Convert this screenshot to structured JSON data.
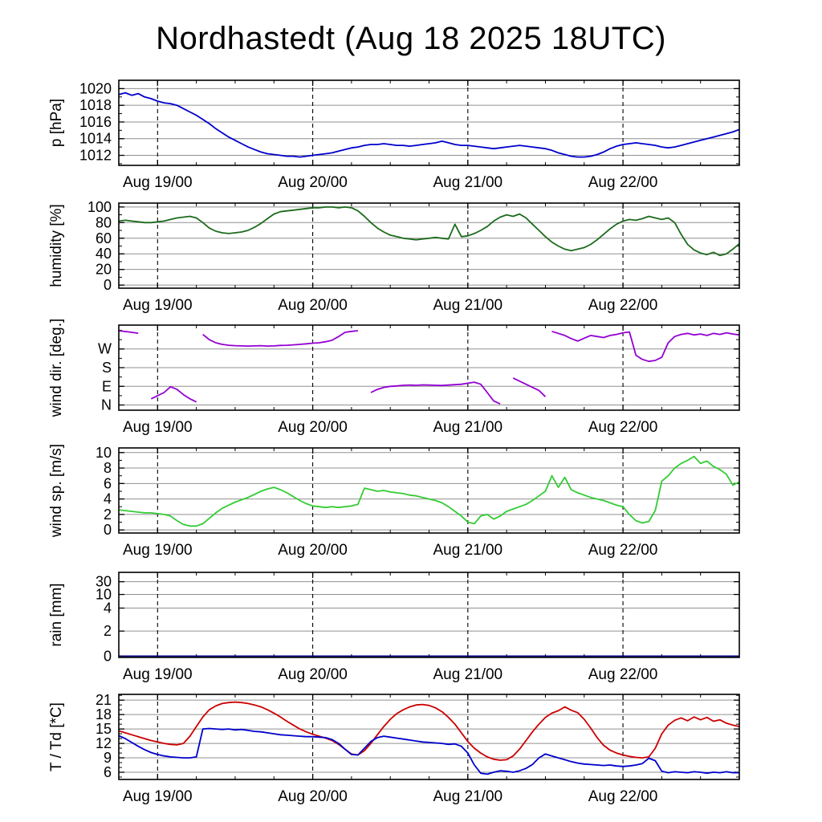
{
  "chart_data": {
    "type": "line",
    "title": "Nordhastedt (Aug 18 2025 18UTC)",
    "x_axis": {
      "start_hours": 0,
      "end_hours": 96,
      "minor_step_hours": 6,
      "day_marks": [
        {
          "hour": 6,
          "label": "Aug 19/00"
        },
        {
          "hour": 30,
          "label": "Aug 20/00"
        },
        {
          "hour": 54,
          "label": "Aug 21/00"
        },
        {
          "hour": 78,
          "label": "Aug 22/00"
        }
      ]
    },
    "colors": {
      "pressure": "#0000cc",
      "humidity": "#1c6b1c",
      "wind_direction": "#9400d3",
      "wind_speed": "#33cc33",
      "rain": "#000080",
      "temperature": "#cc0000",
      "dewpoint": "#0000cc",
      "grid": "#909090",
      "frame": "#000000"
    },
    "panels": [
      {
        "id": "pressure",
        "ylabel": "p [hPa]",
        "ylim": [
          1010.8,
          1021.0
        ],
        "yticks": [
          1012,
          1014,
          1016,
          1018,
          1020
        ],
        "yminor_step": 1,
        "series": [
          {
            "name": "pressure",
            "color": "#0000cc",
            "values": [
              1019.3,
              1019.5,
              1019.2,
              1019.4,
              1019.0,
              1018.8,
              1018.5,
              1018.3,
              1018.2,
              1018.0,
              1017.6,
              1017.2,
              1016.8,
              1016.3,
              1015.8,
              1015.2,
              1014.7,
              1014.2,
              1013.8,
              1013.4,
              1013.0,
              1012.7,
              1012.4,
              1012.2,
              1012.1,
              1012.0,
              1011.9,
              1011.9,
              1011.8,
              1011.9,
              1012.0,
              1012.1,
              1012.2,
              1012.3,
              1012.5,
              1012.7,
              1012.9,
              1013.0,
              1013.2,
              1013.3,
              1013.3,
              1013.4,
              1013.3,
              1013.2,
              1013.2,
              1013.1,
              1013.2,
              1013.3,
              1013.4,
              1013.5,
              1013.7,
              1013.5,
              1013.3,
              1013.2,
              1013.2,
              1013.1,
              1013.0,
              1012.9,
              1012.8,
              1012.9,
              1013.0,
              1013.1,
              1013.2,
              1013.1,
              1013.0,
              1012.9,
              1012.8,
              1012.6,
              1012.3,
              1012.1,
              1011.9,
              1011.8,
              1011.8,
              1011.9,
              1012.1,
              1012.4,
              1012.8,
              1013.1,
              1013.3,
              1013.4,
              1013.5,
              1013.4,
              1013.3,
              1013.2,
              1013.0,
              1012.9,
              1013.0,
              1013.2,
              1013.4,
              1013.6,
              1013.8,
              1014.0,
              1014.2,
              1014.4,
              1014.6,
              1014.8,
              1015.1
            ]
          }
        ]
      },
      {
        "id": "humidity",
        "ylabel": "humidity [%]",
        "ylim": [
          -4,
          105
        ],
        "yticks": [
          0,
          20,
          40,
          60,
          80,
          100
        ],
        "yminor_step": 10,
        "series": [
          {
            "name": "humidity",
            "color": "#1c6b1c",
            "values": [
              82,
              83,
              82,
              81,
              80,
              80,
              81,
              82,
              84,
              86,
              87,
              88,
              86,
              80,
              73,
              69,
              67,
              66,
              67,
              68,
              70,
              74,
              79,
              85,
              91,
              94,
              95,
              96,
              97,
              98,
              99,
              99,
              100,
              100,
              99,
              100,
              99,
              95,
              88,
              80,
              73,
              68,
              64,
              62,
              60,
              59,
              58,
              59,
              60,
              61,
              60,
              59,
              78,
              62,
              63,
              66,
              70,
              75,
              82,
              87,
              90,
              88,
              91,
              86,
              78,
              70,
              62,
              55,
              50,
              46,
              44,
              46,
              48,
              52,
              58,
              65,
              72,
              78,
              82,
              84,
              83,
              85,
              88,
              86,
              84,
              86,
              80,
              65,
              52,
              45,
              41,
              39,
              42,
              38,
              40,
              46,
              53
            ]
          }
        ]
      },
      {
        "id": "wind-dir",
        "ylabel": "wind dir. [deg.]",
        "ylim": [
          -25,
          385
        ],
        "yticks": [
          {
            "value": 0,
            "label": "N"
          },
          {
            "value": 90,
            "label": "E"
          },
          {
            "value": 180,
            "label": "S"
          },
          {
            "value": 270,
            "label": "W"
          }
        ],
        "yminor_step": 45,
        "break_gap": 180,
        "series": [
          {
            "name": "wind_direction",
            "color": "#9400d3",
            "values": [
              358,
              354,
              350,
              346,
              null,
              30,
              45,
              60,
              88,
              75,
              50,
              30,
              15,
              340,
              315,
              300,
              292,
              288,
              286,
              285,
              284,
              285,
              286,
              284,
              285,
              287,
              288,
              290,
              292,
              295,
              298,
              300,
              305,
              312,
              330,
              350,
              355,
              358,
              null,
              60,
              75,
              85,
              90,
              92,
              95,
              96,
              95,
              97,
              96,
              95,
              94,
              96,
              98,
              100,
              105,
              110,
              100,
              60,
              20,
              5,
              null,
              130,
              115,
              100,
              85,
              70,
              40,
              355,
              345,
              335,
              320,
              308,
              322,
              335,
              330,
              325,
              335,
              340,
              348,
              352,
              240,
              220,
              210,
              215,
              230,
              300,
              330,
              340,
              345,
              338,
              342,
              335,
              345,
              340,
              348,
              342,
              338
            ]
          }
        ]
      },
      {
        "id": "wind-speed",
        "ylabel": "wind sp. [m/s]",
        "ylim": [
          -0.4,
          10.6
        ],
        "yticks": [
          0,
          2,
          4,
          6,
          8,
          10
        ],
        "yminor_step": 1,
        "series": [
          {
            "name": "wind_speed",
            "color": "#33cc33",
            "values": [
              2.6,
              2.5,
              2.4,
              2.3,
              2.2,
              2.2,
              2.1,
              2.0,
              1.8,
              1.2,
              0.7,
              0.5,
              0.5,
              0.8,
              1.5,
              2.2,
              2.8,
              3.2,
              3.6,
              3.9,
              4.2,
              4.6,
              5.0,
              5.3,
              5.5,
              5.2,
              4.8,
              4.3,
              3.8,
              3.4,
              3.1,
              3.0,
              2.9,
              3.0,
              2.9,
              3.0,
              3.1,
              3.3,
              5.4,
              5.2,
              5.0,
              5.1,
              4.9,
              4.8,
              4.7,
              4.5,
              4.4,
              4.2,
              4.0,
              3.8,
              3.5,
              3.0,
              2.4,
              1.8,
              1.0,
              0.8,
              1.8,
              2.0,
              1.4,
              1.8,
              2.4,
              2.7,
              3.0,
              3.3,
              3.8,
              4.4,
              5.0,
              7.0,
              5.5,
              6.8,
              5.2,
              4.8,
              4.5,
              4.2,
              4.0,
              3.8,
              3.5,
              3.2,
              3.0,
              2.0,
              1.2,
              0.9,
              1.1,
              2.5,
              6.3,
              7.0,
              8.0,
              8.6,
              9.0,
              9.5,
              8.6,
              8.9,
              8.2,
              7.8,
              7.2,
              5.8,
              6.2
            ]
          }
        ]
      },
      {
        "id": "rain",
        "ylabel": "rain [mm]",
        "yticks": [
          0,
          2,
          4,
          10,
          30
        ],
        "scale": {
          "type": "piecewise",
          "stops": [
            [
              0,
              0.015
            ],
            [
              2,
              0.31
            ],
            [
              4,
              0.58
            ],
            [
              10,
              0.74
            ],
            [
              30,
              0.89
            ],
            [
              100,
              1.0
            ]
          ]
        },
        "series": [
          {
            "name": "rain",
            "color": "#000080",
            "values": [
              0,
              0
            ]
          }
        ]
      },
      {
        "id": "temperature",
        "ylabel": "T / Td [*C]",
        "ylim": [
          4.5,
          22.2
        ],
        "yticks": [
          6,
          9,
          12,
          15,
          18,
          21
        ],
        "yminor_step": 1,
        "series": [
          {
            "name": "T",
            "color": "#cc0000",
            "values": [
              14.6,
              14.2,
              13.8,
              13.4,
              13.0,
              12.6,
              12.3,
              12.0,
              11.8,
              11.7,
              12.0,
              13.5,
              15.5,
              17.5,
              19.0,
              19.8,
              20.3,
              20.5,
              20.6,
              20.5,
              20.3,
              20.0,
              19.6,
              19.0,
              18.3,
              17.5,
              16.6,
              15.8,
              15.0,
              14.4,
              13.9,
              13.5,
              13.1,
              12.6,
              11.8,
              10.8,
              9.8,
              9.6,
              10.5,
              12.0,
              13.8,
              15.5,
              17.0,
              18.2,
              19.0,
              19.6,
              20.0,
              20.1,
              19.9,
              19.4,
              18.6,
              17.4,
              16.0,
              14.2,
              12.4,
              11.0,
              10.0,
              9.2,
              8.7,
              8.5,
              8.6,
              9.4,
              10.8,
              12.6,
              14.4,
              16.0,
              17.4,
              18.3,
              18.8,
              19.6,
              18.9,
              18.4,
              17.0,
              15.2,
              13.2,
              11.6,
              10.6,
              10.0,
              9.6,
              9.3,
              9.1,
              9.0,
              9.2,
              11.0,
              14.0,
              15.8,
              16.8,
              17.3,
              16.7,
              17.5,
              16.9,
              17.4,
              16.6,
              16.9,
              16.2,
              15.8,
              15.5
            ]
          },
          {
            "name": "Td",
            "color": "#0000cc",
            "values": [
              13.6,
              13.0,
              12.2,
              11.4,
              10.7,
              10.1,
              9.7,
              9.4,
              9.2,
              9.1,
              9.0,
              9.0,
              9.2,
              15.0,
              15.1,
              15.0,
              14.9,
              15.0,
              14.8,
              14.9,
              14.7,
              14.5,
              14.4,
              14.2,
              14.0,
              13.8,
              13.7,
              13.6,
              13.5,
              13.4,
              13.4,
              13.3,
              13.2,
              12.8,
              12.0,
              10.8,
              9.7,
              9.6,
              11.0,
              12.4,
              13.2,
              13.5,
              13.3,
              13.1,
              12.9,
              12.7,
              12.5,
              12.3,
              12.2,
              12.1,
              12.0,
              11.8,
              11.9,
              11.4,
              10.0,
              7.5,
              5.8,
              5.6,
              6.0,
              6.3,
              6.2,
              6.0,
              6.3,
              6.8,
              7.6,
              9.0,
              9.8,
              9.4,
              9.0,
              8.6,
              8.2,
              7.9,
              7.7,
              7.6,
              7.5,
              7.4,
              7.5,
              7.3,
              7.2,
              7.3,
              7.5,
              7.8,
              8.9,
              8.4,
              6.2,
              5.9,
              6.1,
              6.0,
              5.9,
              6.1,
              6.0,
              5.8,
              6.0,
              5.9,
              6.1,
              5.9,
              5.9
            ]
          }
        ]
      }
    ]
  }
}
